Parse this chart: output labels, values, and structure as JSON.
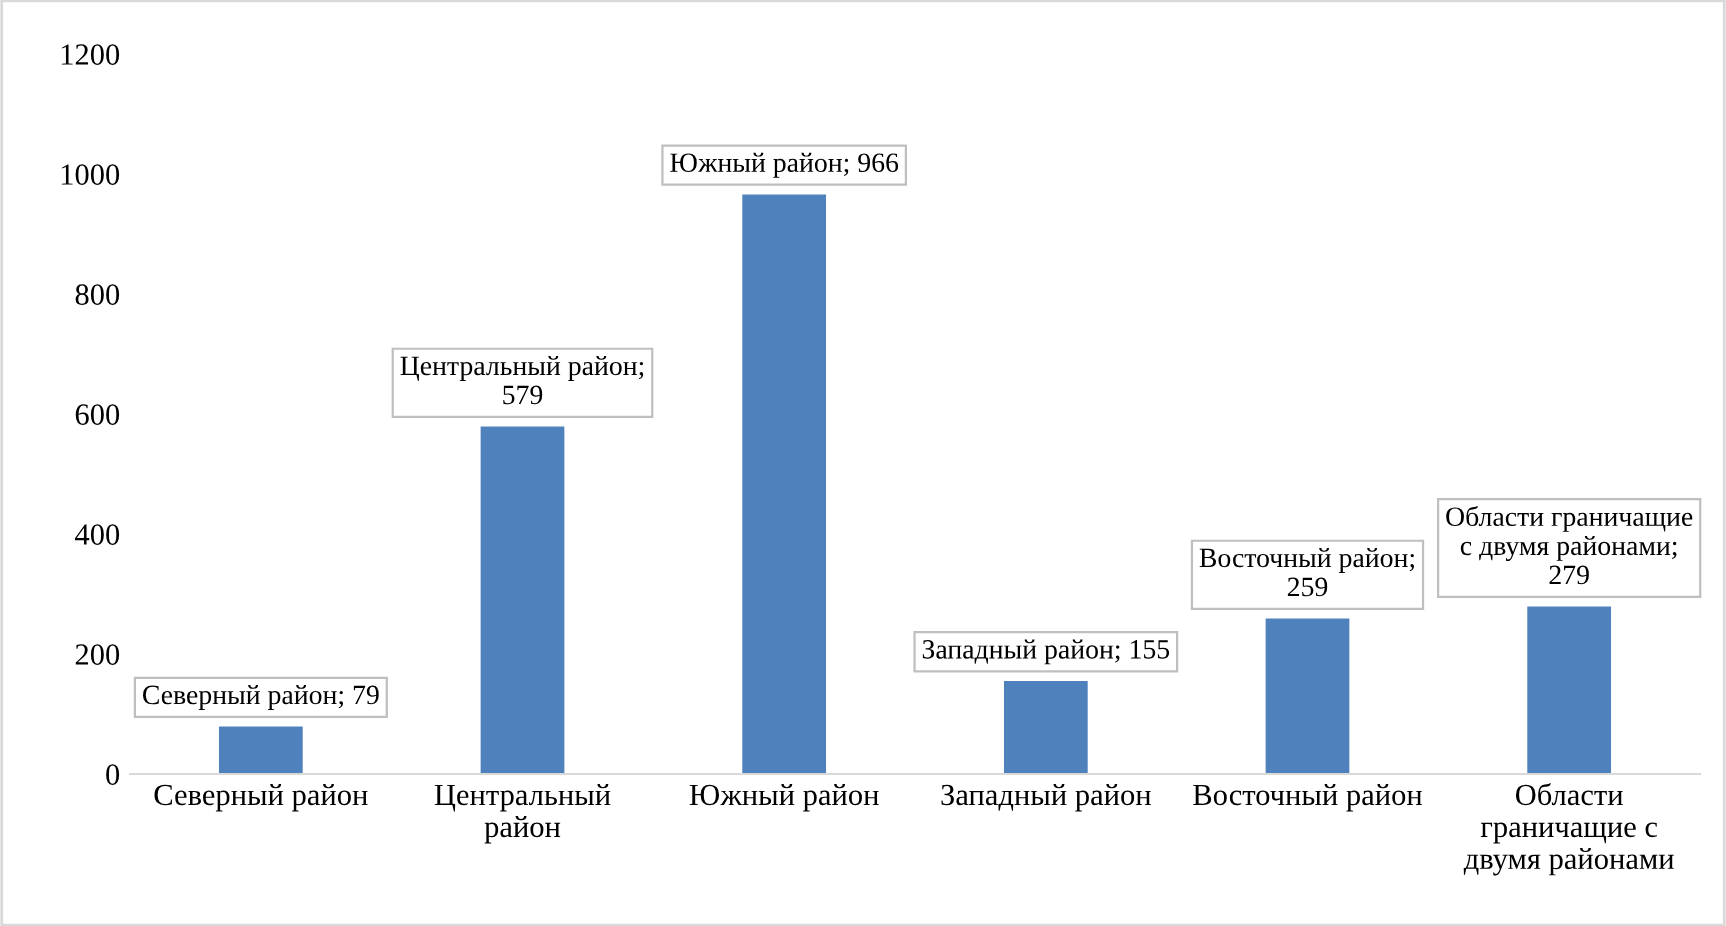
{
  "chart_data": {
    "type": "bar",
    "categories": [
      "Северный район",
      "Центральный\nрайон",
      "Южный район",
      "Западный район",
      "Восточный район",
      "Области\nграничащие с\nдвумя районами"
    ],
    "values": [
      79,
      579,
      966,
      155,
      259,
      279
    ],
    "color": "#4f81bd",
    "ylim": [
      0,
      1200
    ],
    "yticks": [
      0,
      200,
      400,
      600,
      800,
      1000,
      1200
    ],
    "grid": false,
    "legend": false,
    "value_labels": [
      "Северный район; 79",
      "Центральный район;\n579",
      "Южный район; 966",
      "Западный район; 155",
      "Восточный район;\n259",
      "Области граничащие\nс двумя районами;\n279"
    ]
  }
}
